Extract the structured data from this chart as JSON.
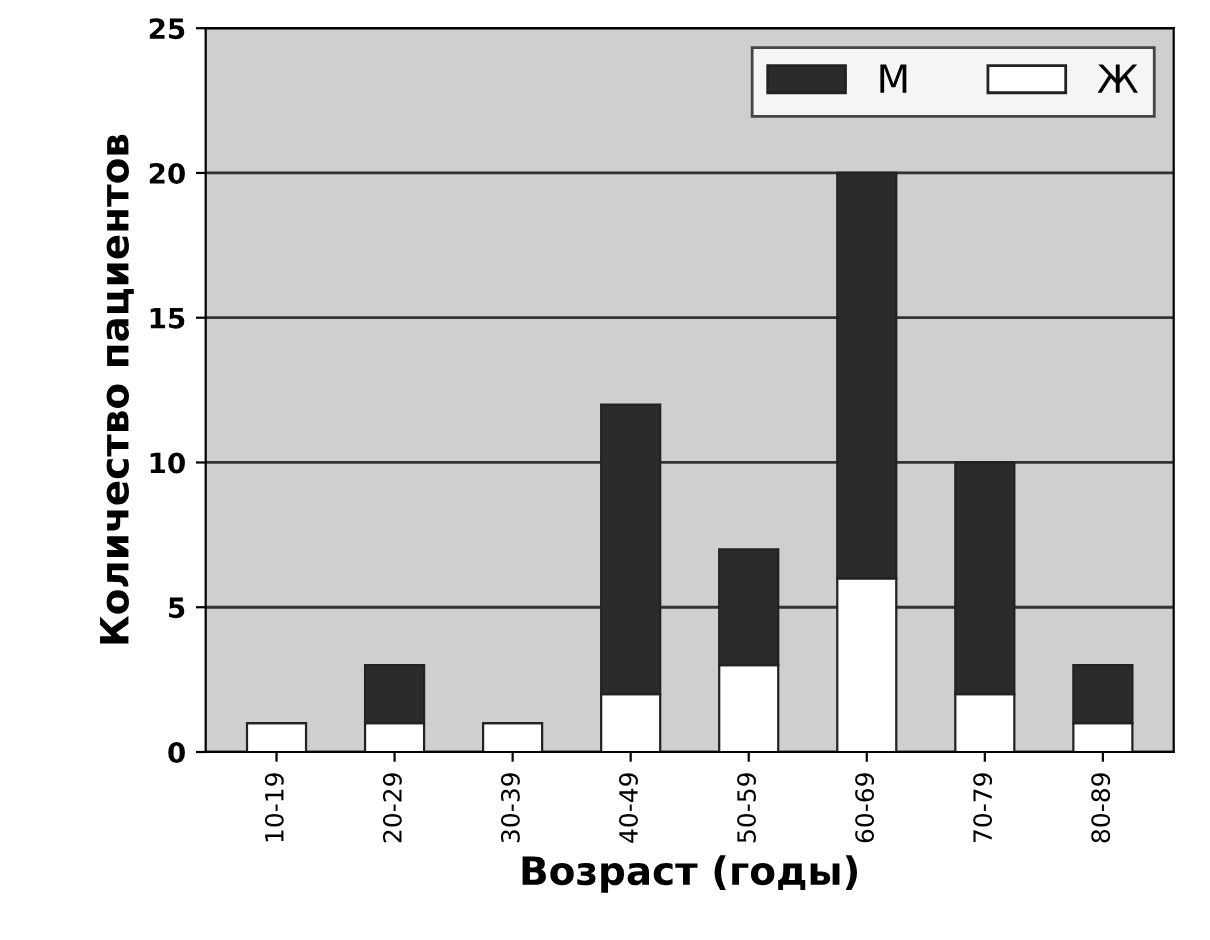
{
  "chart_data": {
    "type": "bar",
    "stacked": true,
    "xlabel": "Возраст (годы)",
    "ylabel": "Количество пациентов",
    "categories": [
      "10-19",
      "20-29",
      "30-39",
      "40-49",
      "50-59",
      "60-69",
      "70-79",
      "80-89"
    ],
    "series": [
      {
        "name": "Ж",
        "color": "#ffffff",
        "values": [
          1,
          1,
          1,
          2,
          3,
          6,
          2,
          1
        ]
      },
      {
        "name": "М",
        "color": "#2b2b2b",
        "values": [
          0,
          2,
          0,
          10,
          4,
          14,
          8,
          2
        ]
      }
    ],
    "ylim": [
      0,
      25
    ],
    "yticks": [
      0,
      5,
      10,
      15,
      20,
      25
    ],
    "grid": "y",
    "legend": "top right"
  }
}
